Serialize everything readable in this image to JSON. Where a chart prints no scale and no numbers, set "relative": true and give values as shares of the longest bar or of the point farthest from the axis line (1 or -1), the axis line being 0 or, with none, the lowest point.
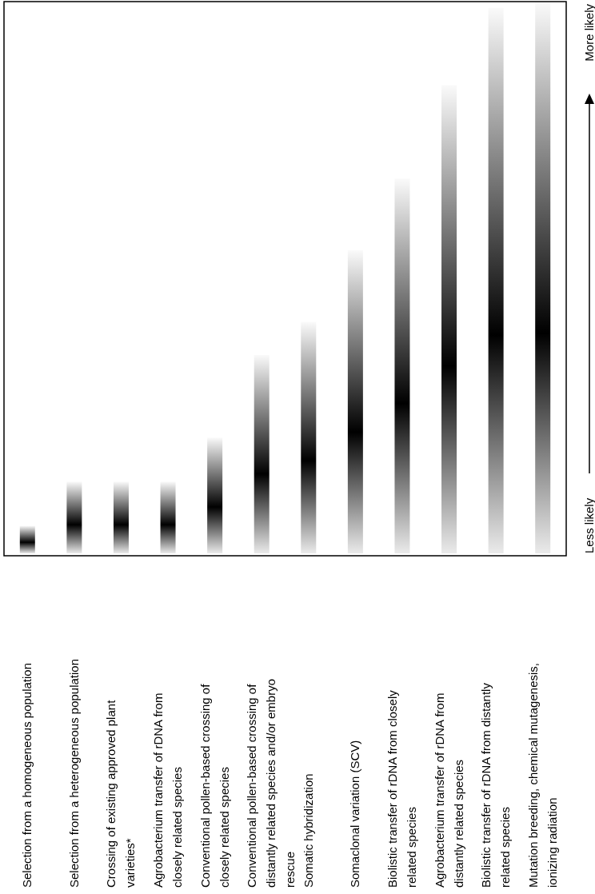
{
  "chart_data": {
    "type": "bar",
    "relative": true,
    "categories": [
      "Selection from a homogeneous population",
      "Selection from a heterogeneous population",
      "Crossing of existing approved plant varieties*",
      "Agrobacterium transfer of rDNA from closely related species",
      "Conventional pollen-based crossing of closely related species",
      "Conventional pollen-based crossing of distantly related species and/or embryo rescue",
      "Somatic hybridization",
      "Somaclonal variation (SCV)",
      "Biolistic transfer of rDNA from closely related species",
      "Agrobacterium transfer of rDNA from distantly related species",
      "Biolistic transfer of rDNA from distantly related species",
      "Mutation breeding, chemical mutagenesis, ionizing radiation"
    ],
    "series": [
      {
        "color": "#000000",
        "values": [
          0.05,
          0.13,
          0.13,
          0.13,
          0.21,
          0.36,
          0.42,
          0.55,
          0.68,
          0.85,
          0.99,
          1
        ]
      }
    ],
    "annotations": [
      "Less likely",
      "More likely"
    ],
    "line_style": "solid"
  }
}
